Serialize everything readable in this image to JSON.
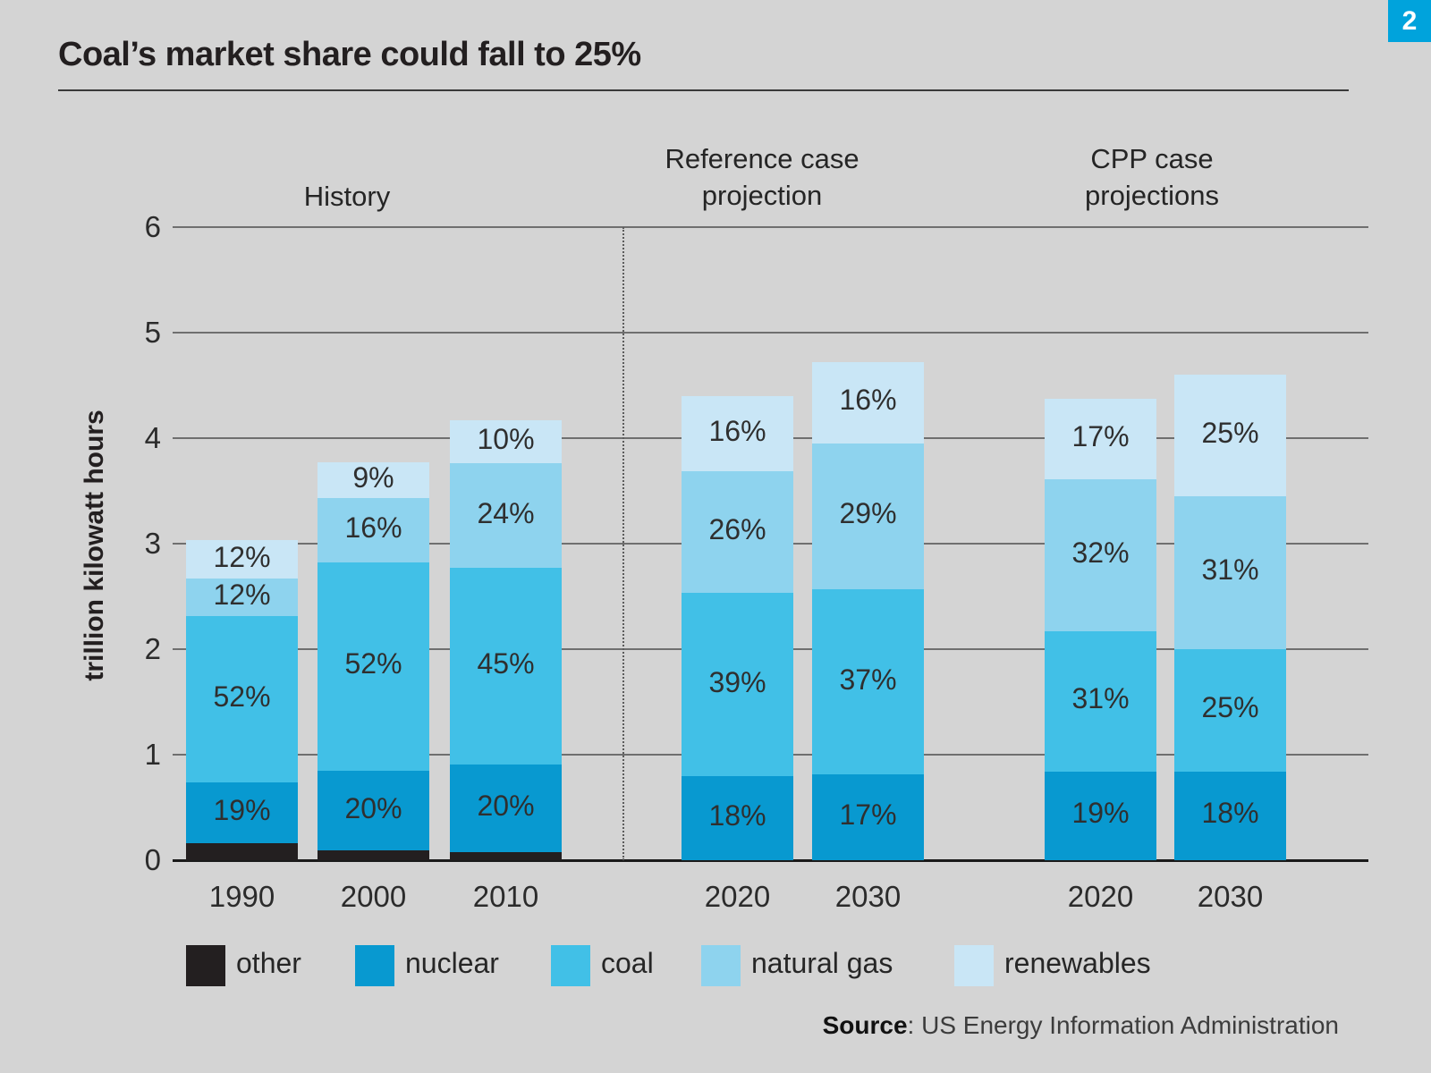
{
  "page": {
    "badge": "2",
    "badge_color": "#00a3dc",
    "title": "Coal’s market share could fall to 25%",
    "source_label": "Source",
    "source_separator": ": ",
    "source_text": "US Energy Information Administration"
  },
  "chart_data": {
    "type": "bar",
    "subtype": "stacked-column",
    "title": "Coal’s market share could fall to 25%",
    "ylabel": "trillion kilowatt hours",
    "ylim": [
      0,
      6
    ],
    "yticks": [
      "0",
      "1",
      "2",
      "3",
      "4",
      "5",
      "6"
    ],
    "grid": "horizontal",
    "legend_position": "bottom",
    "sections": [
      {
        "label": "History",
        "years": [
          "1990",
          "2000",
          "2010"
        ]
      },
      {
        "label": "Reference case projection",
        "years": [
          "2020",
          "2030"
        ]
      },
      {
        "label": "CPP case projections",
        "years": [
          "2020",
          "2030"
        ]
      }
    ],
    "legend": [
      {
        "key": "other",
        "label": "other",
        "color": "#231f20"
      },
      {
        "key": "nuclear",
        "label": "nuclear",
        "color": "#0899d0"
      },
      {
        "key": "coal",
        "label": "coal",
        "color": "#41c0e7"
      },
      {
        "key": "natural_gas",
        "label": "natural gas",
        "color": "#8ed3ee"
      },
      {
        "key": "renewables",
        "label": "renewables",
        "color": "#c9e6f6"
      }
    ],
    "bars": [
      {
        "year": "1990",
        "section": "History",
        "total_trillion_kwh": 3.03,
        "segments": [
          {
            "key": "other",
            "value": 0.16,
            "label": null
          },
          {
            "key": "nuclear",
            "value": 0.58,
            "label": "19%"
          },
          {
            "key": "coal",
            "value": 1.57,
            "label": "52%"
          },
          {
            "key": "natural_gas",
            "value": 0.36,
            "label": "12%"
          },
          {
            "key": "renewables",
            "value": 0.36,
            "label": "12%"
          }
        ]
      },
      {
        "year": "2000",
        "section": "History",
        "total_trillion_kwh": 3.77,
        "segments": [
          {
            "key": "other",
            "value": 0.09,
            "label": null
          },
          {
            "key": "nuclear",
            "value": 0.76,
            "label": "20%"
          },
          {
            "key": "coal",
            "value": 1.97,
            "label": "52%"
          },
          {
            "key": "natural_gas",
            "value": 0.61,
            "label": "16%"
          },
          {
            "key": "renewables",
            "value": 0.34,
            "label": "9%"
          }
        ]
      },
      {
        "year": "2010",
        "section": "History",
        "total_trillion_kwh": 4.17,
        "segments": [
          {
            "key": "other",
            "value": 0.08,
            "label": null
          },
          {
            "key": "nuclear",
            "value": 0.83,
            "label": "20%"
          },
          {
            "key": "coal",
            "value": 1.86,
            "label": "45%"
          },
          {
            "key": "natural_gas",
            "value": 0.99,
            "label": "24%"
          },
          {
            "key": "renewables",
            "value": 0.41,
            "label": "10%"
          }
        ]
      },
      {
        "year": "2020",
        "section": "Reference case projection",
        "total_trillion_kwh": 4.4,
        "segments": [
          {
            "key": "other",
            "value": 0,
            "label": null
          },
          {
            "key": "nuclear",
            "value": 0.8,
            "label": "18%"
          },
          {
            "key": "coal",
            "value": 1.73,
            "label": "39%"
          },
          {
            "key": "natural_gas",
            "value": 1.16,
            "label": "26%"
          },
          {
            "key": "renewables",
            "value": 0.71,
            "label": "16%"
          }
        ]
      },
      {
        "year": "2030",
        "section": "Reference case projection",
        "total_trillion_kwh": 4.72,
        "segments": [
          {
            "key": "other",
            "value": 0,
            "label": null
          },
          {
            "key": "nuclear",
            "value": 0.81,
            "label": "17%"
          },
          {
            "key": "coal",
            "value": 1.76,
            "label": "37%"
          },
          {
            "key": "natural_gas",
            "value": 1.38,
            "label": "29%"
          },
          {
            "key": "renewables",
            "value": 0.77,
            "label": "16%"
          }
        ]
      },
      {
        "year": "2020",
        "section": "CPP case projections",
        "total_trillion_kwh": 4.37,
        "segments": [
          {
            "key": "other",
            "value": 0,
            "label": null
          },
          {
            "key": "nuclear",
            "value": 0.84,
            "label": "19%"
          },
          {
            "key": "coal",
            "value": 1.33,
            "label": "31%"
          },
          {
            "key": "natural_gas",
            "value": 1.44,
            "label": "32%"
          },
          {
            "key": "renewables",
            "value": 0.76,
            "label": "17%"
          }
        ]
      },
      {
        "year": "2030",
        "section": "CPP case projections",
        "total_trillion_kwh": 4.6,
        "segments": [
          {
            "key": "other",
            "value": 0,
            "label": null
          },
          {
            "key": "nuclear",
            "value": 0.84,
            "label": "18%"
          },
          {
            "key": "coal",
            "value": 1.16,
            "label": "25%"
          },
          {
            "key": "natural_gas",
            "value": 1.45,
            "label": "31%"
          },
          {
            "key": "renewables",
            "value": 1.15,
            "label": "25%"
          }
        ]
      }
    ]
  }
}
